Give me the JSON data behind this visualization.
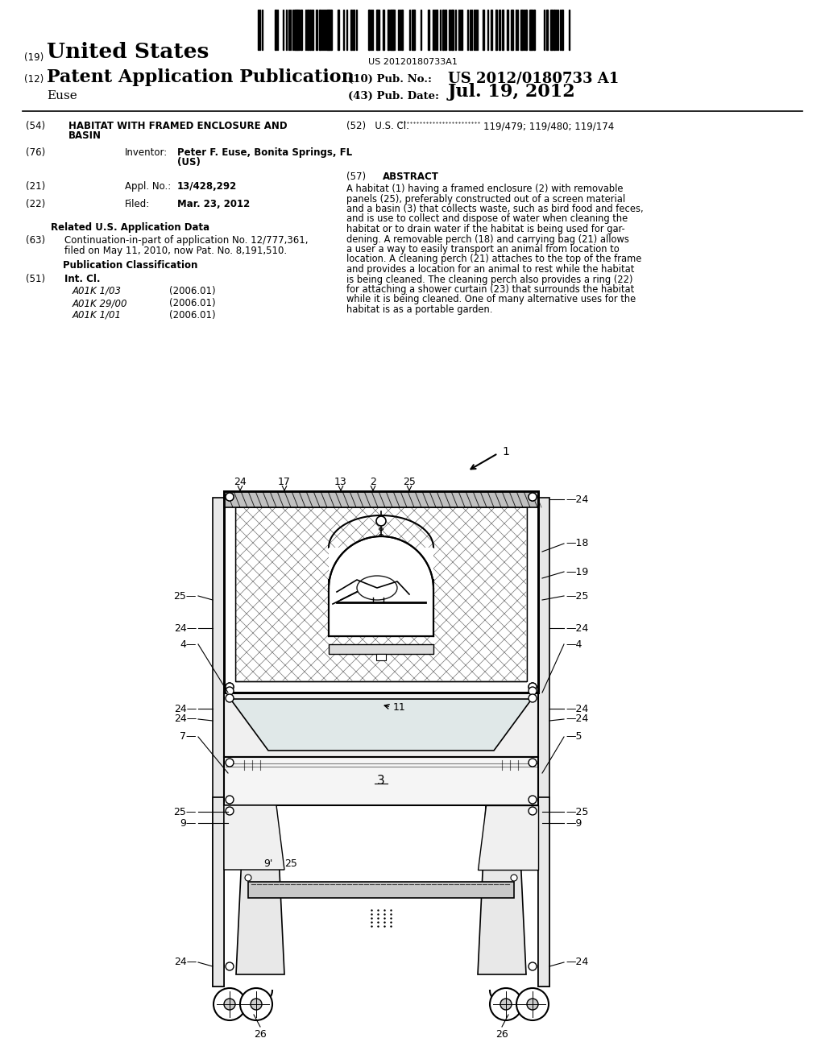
{
  "background_color": "#ffffff",
  "barcode_text": "US 20120180733A1",
  "header": {
    "country_label": "(19)",
    "country": "United States",
    "type_label": "(12)",
    "type": "Patent Application Publication",
    "inventor_last": "Euse",
    "pub_no_label": "(10) Pub. No.:",
    "pub_no": "US 2012/0180733 A1",
    "pub_date_label": "(43) Pub. Date:",
    "pub_date": "Jul. 19, 2012"
  },
  "fields": {
    "title_label": "(54)",
    "title_line1": "HABITAT WITH FRAMED ENCLOSURE AND",
    "title_line2": "BASIN",
    "us_cl_label": "(52)",
    "us_cl_key": "U.S. Cl.",
    "us_cl_val": "119/479; 119/480; 119/174",
    "inventor_label": "(76)",
    "inventor_key": "Inventor:",
    "inventor_val_line1": "Peter F. Euse, Bonita Springs, FL",
    "inventor_val_line2": "(US)",
    "abstract_label": "(57)",
    "abstract_title": "ABSTRACT",
    "abstract_text": "A habitat (1) having a framed enclosure (2) with removable panels (25), preferably constructed out of a screen material and a basin (3) that collects waste, such as bird food and feces, and is use to collect and dispose of water when cleaning the habitat or to drain water if the habitat is being used for gar-dening. A removable perch (18) and carrying bag (21) allows a user a way to easily transport an animal from location to location. A cleaning perch (21) attaches to the top of the frame and provides a location for an animal to rest while the habitat is being cleaned. The cleaning perch also provides a ring (22) for attaching a shower curtain (23) that surrounds the habitat while it is being cleaned. One of many alternative uses for the habitat is as a portable garden.",
    "appl_no_label": "(21)",
    "appl_no_key": "Appl. No.:",
    "appl_no_val": "13/428,292",
    "filed_label": "(22)",
    "filed_key": "Filed:",
    "filed_val": "Mar. 23, 2012",
    "related_title": "Related U.S. Application Data",
    "related_label": "(63)",
    "related_text": "Continuation-in-part of application No. 12/777,361,\nfiled on May 11, 2010, now Pat. No. 8,191,510.",
    "pub_class_title": "Publication Classification",
    "int_cl_label": "(51)",
    "int_cl_key": "Int. Cl.",
    "int_cl_entries": [
      [
        "A01K 1/03",
        "(2006.01)"
      ],
      [
        "A01K 29/00",
        "(2006.01)"
      ],
      [
        "A01K 1/01",
        "(2006.01)"
      ]
    ]
  }
}
